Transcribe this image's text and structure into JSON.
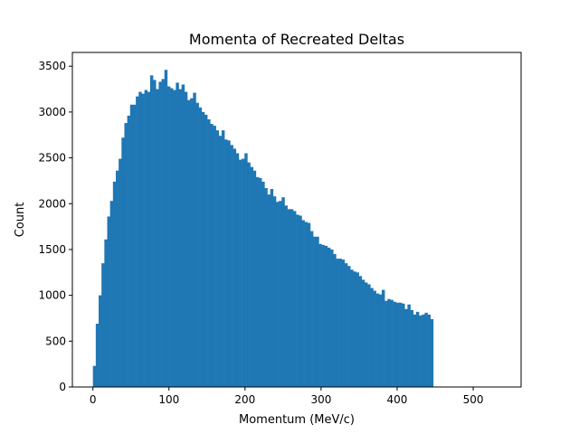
{
  "chart_data": {
    "type": "bar",
    "title": "Momenta of Recreated Deltas",
    "xlabel": "Momentum (MeV/c)",
    "ylabel": "Count",
    "xlim": [
      -27,
      563
    ],
    "ylim": [
      0,
      3650
    ],
    "xticks": [
      0,
      100,
      200,
      300,
      400,
      500
    ],
    "yticks": [
      0,
      500,
      1000,
      1500,
      2000,
      2500,
      3000,
      3500
    ],
    "bin_start": 0,
    "bin_width": 3.76,
    "values": [
      230,
      690,
      1000,
      1350,
      1610,
      1860,
      2030,
      2240,
      2360,
      2490,
      2720,
      2880,
      2960,
      3080,
      3080,
      3170,
      3220,
      3200,
      3240,
      3220,
      3400,
      3350,
      3250,
      3330,
      3360,
      3460,
      3280,
      3260,
      3240,
      3320,
      3250,
      3300,
      3220,
      3130,
      3150,
      3210,
      3100,
      3050,
      3000,
      2970,
      2920,
      2870,
      2850,
      2800,
      2740,
      2800,
      2700,
      2690,
      2640,
      2600,
      2550,
      2480,
      2490,
      2550,
      2450,
      2400,
      2360,
      2290,
      2280,
      2240,
      2170,
      2100,
      2160,
      2080,
      2020,
      2030,
      2070,
      1980,
      1940,
      1940,
      1920,
      1880,
      1870,
      1820,
      1800,
      1790,
      1700,
      1640,
      1640,
      1560,
      1550,
      1540,
      1520,
      1500,
      1450,
      1400,
      1400,
      1390,
      1350,
      1320,
      1280,
      1260,
      1250,
      1210,
      1170,
      1140,
      1120,
      1080,
      1050,
      1020,
      1010,
      1060,
      940,
      960,
      950,
      930,
      920,
      920,
      910,
      850,
      900,
      840,
      790,
      820,
      780,
      790,
      810,
      790,
      740
    ],
    "color": "#1f77b4"
  }
}
